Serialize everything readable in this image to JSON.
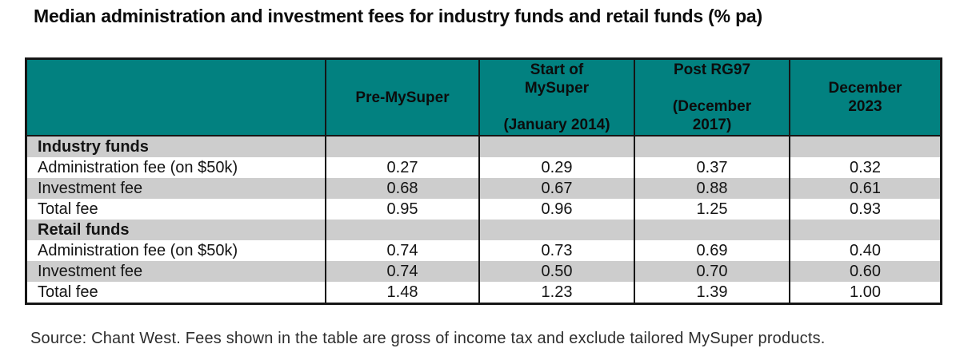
{
  "title": "Median administration and investment fees for industry funds and retail funds (% pa)",
  "table": {
    "columns": [
      "Pre-MySuper",
      "Start of\nMySuper\n\n(January 2014)",
      "Post RG97\n\n(December\n2017)",
      "December\n2023"
    ],
    "rows": [
      {
        "label": "Industry funds",
        "values": [
          "",
          "",
          "",
          ""
        ]
      },
      {
        "label": "Administration fee (on $50k)",
        "values": [
          "0.27",
          "0.29",
          "0.37",
          "0.32"
        ]
      },
      {
        "label": "Investment fee",
        "values": [
          "0.68",
          "0.67",
          "0.88",
          "0.61"
        ]
      },
      {
        "label": "Total fee",
        "values": [
          "0.95",
          "0.96",
          "1.25",
          "0.93"
        ]
      },
      {
        "label": "Retail funds",
        "values": [
          "",
          "",
          "",
          ""
        ]
      },
      {
        "label": "Administration fee (on $50k)",
        "values": [
          "0.74",
          "0.73",
          "0.69",
          "0.40"
        ]
      },
      {
        "label": "Investment fee",
        "values": [
          "0.74",
          "0.50",
          "0.70",
          "0.60"
        ]
      },
      {
        "label": "Total fee",
        "values": [
          "1.48",
          "1.23",
          "1.39",
          "1.00"
        ]
      }
    ]
  },
  "source": "Source: Chant West. Fees shown in the table are gross of income tax and exclude tailored MySuper products.",
  "colors": {
    "header_teal": "#028180",
    "stripe_gray": "#cdcdcd",
    "border_black": "#161616"
  }
}
